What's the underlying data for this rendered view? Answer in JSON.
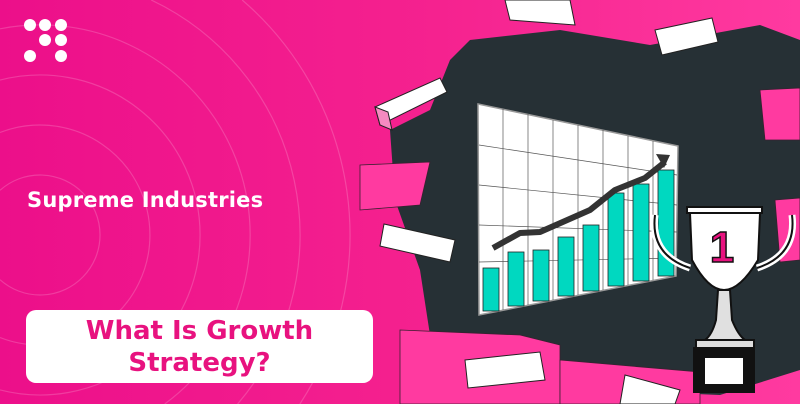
{
  "brand": {
    "logo_icon": "dots-grid-logo-icon"
  },
  "company_name": "Supreme Industries",
  "headline": "What Is Growth Strategy?",
  "illustration": {
    "trophy_label": "1",
    "colors": {
      "background": "#f01a8d",
      "hole": "#263035",
      "bars": "#00d8c0",
      "accent": "#e8127f"
    }
  }
}
